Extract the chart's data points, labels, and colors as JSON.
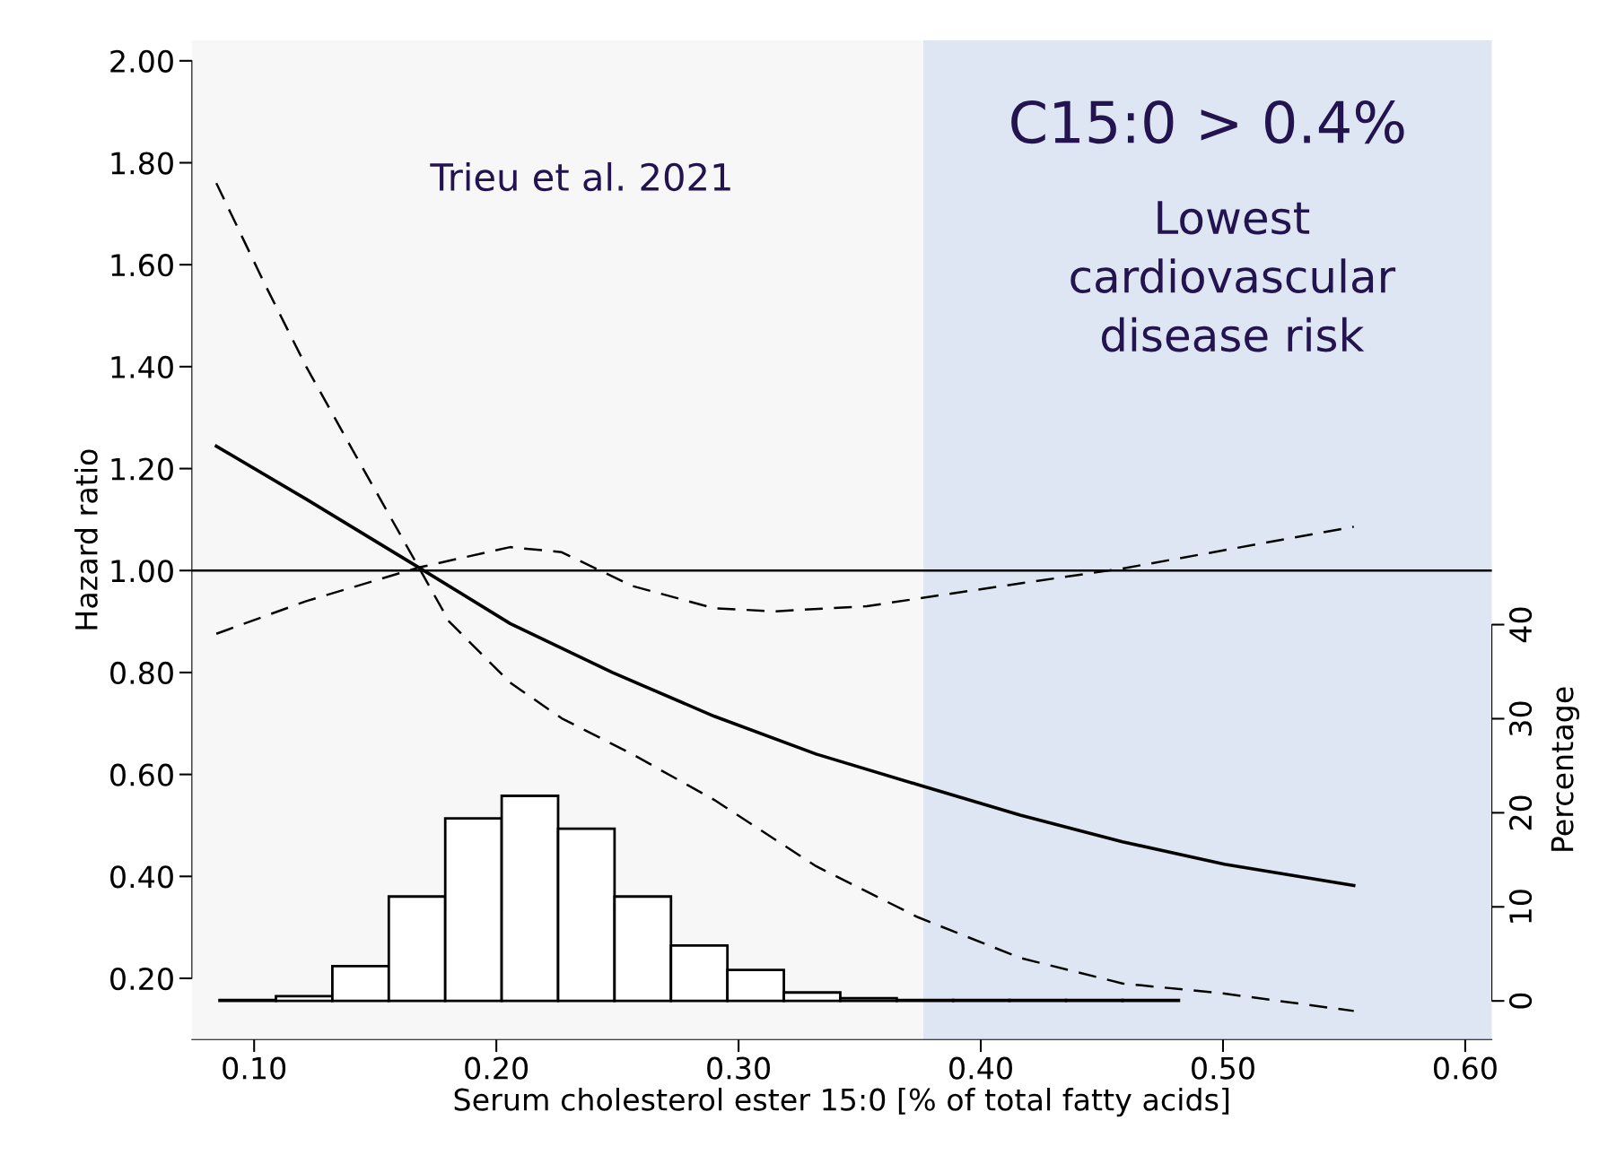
{
  "chart_data": {
    "type": "line",
    "xlabel": "Serum cholesterol ester 15:0 [% of total fatty acids]",
    "ylabel": "Hazard ratio",
    "y2label": "Percentage",
    "xlim": [
      0.0743,
      0.611
    ],
    "xticks": [
      {
        "value": 0.1,
        "label": "0.10"
      },
      {
        "value": 0.2,
        "label": "0.20"
      },
      {
        "value": 0.3,
        "label": "0.30"
      },
      {
        "value": 0.4,
        "label": "0.40"
      },
      {
        "value": 0.5,
        "label": "0.50"
      },
      {
        "value": 0.6,
        "label": "0.60"
      }
    ],
    "ylim": [
      0.08,
      2.04
    ],
    "yticks": [
      {
        "value": 0.2,
        "label": "0.20"
      },
      {
        "value": 0.4,
        "label": "0.40"
      },
      {
        "value": 0.6,
        "label": "0.60"
      },
      {
        "value": 0.8,
        "label": "0.80"
      },
      {
        "value": 1.0,
        "label": "1.00"
      },
      {
        "value": 1.2,
        "label": "1.20"
      },
      {
        "value": 1.4,
        "label": "1.40"
      },
      {
        "value": 1.6,
        "label": "1.60"
      },
      {
        "value": 1.8,
        "label": "1.80"
      },
      {
        "value": 2.0,
        "label": "2.00"
      }
    ],
    "y2lim": [
      -4.1,
      102.1
    ],
    "y2ticks": [
      0,
      10,
      20,
      30,
      40
    ],
    "grid": false,
    "series": [
      {
        "type": "histogram",
        "axis": "y2",
        "color": "#ffffff",
        "bins": [
          0.0857,
          0.109,
          0.1323,
          0.1556,
          0.1789,
          0.2022,
          0.2255,
          0.2488,
          0.2721,
          0.2954,
          0.3187,
          0.342,
          0.3653,
          0.3886,
          0.4119,
          0.4352,
          0.4585,
          0.4818
        ],
        "values": [
          0.1,
          0.5,
          3.7,
          11.1,
          19.4,
          21.8,
          18.3,
          11.1,
          5.9,
          3.3,
          0.9,
          0.3,
          0.1,
          0.1,
          0.1,
          0.1,
          0.1
        ]
      },
      {
        "line_style": "solid",
        "color": "#000000",
        "x": [
          0.0844,
          0.1215,
          0.168,
          0.2057,
          0.2479,
          0.29,
          0.332,
          0.374,
          0.4163,
          0.4585,
          0.5006,
          0.554
        ],
        "values": [
          1.244,
          1.14,
          1.006,
          0.896,
          0.8,
          0.714,
          0.64,
          0.58,
          0.52,
          0.468,
          0.424,
          0.382
        ]
      },
      {
        "line_style": "dashed",
        "color": "#000000",
        "x": [
          0.0844,
          0.1046,
          0.1215,
          0.1426,
          0.168,
          0.1805,
          0.2057,
          0.227,
          0.256,
          0.29,
          0.332,
          0.374,
          0.4163,
          0.4585,
          0.5006,
          0.554
        ],
        "values": [
          1.76,
          1.56,
          1.4,
          1.22,
          1.006,
          0.9,
          0.78,
          0.71,
          0.64,
          0.55,
          0.42,
          0.32,
          0.24,
          0.19,
          0.17,
          0.136
        ]
      },
      {
        "line_style": "dashed",
        "color": "#000000",
        "x": [
          0.0844,
          0.1215,
          0.168,
          0.2057,
          0.227,
          0.256,
          0.29,
          0.315,
          0.353,
          0.395,
          0.4585,
          0.5006,
          0.554
        ],
        "values": [
          0.876,
          0.94,
          1.006,
          1.046,
          1.036,
          0.97,
          0.926,
          0.92,
          0.93,
          0.96,
          1.004,
          1.04,
          1.086
        ]
      }
    ],
    "ref_lines": [
      {
        "axis": "y",
        "value": 1.0,
        "color": "#000000",
        "line_style": "solid"
      }
    ],
    "bands": [
      {
        "axis": "x",
        "from": 0.3763,
        "to": 0.611,
        "label": "C15:0 > 0.4%",
        "color": "#dde6f2"
      }
    ],
    "annotations": [
      "Lowest\ncardiovascular\ndisease risk",
      "Trieu et al. 2021"
    ]
  }
}
